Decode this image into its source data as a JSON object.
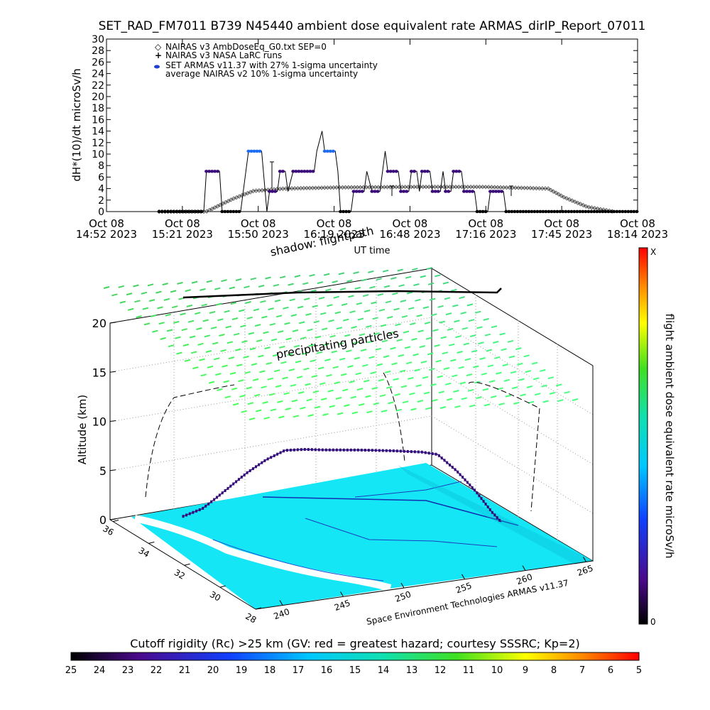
{
  "figure_title": "SET_RAD_FM7011  B739 N45440 ambient dose equivalent rate ARMAS_dirIP_Report_07011",
  "legend": [
    {
      "symbol": "diamond",
      "label": "NAIRAS v3 AmbDoseEq_G0.txt SEP=0"
    },
    {
      "symbol": "plus",
      "label": "NAIRAS v3 NASA LaRC runs"
    },
    {
      "symbol": "dot",
      "label": "SET ARMAS v11.37 with 27% 1-sigma uncertainty"
    },
    {
      "symbol": "none",
      "label": "average NAIRAS v2 10% 1-sigma uncertainty"
    }
  ],
  "colors": {
    "armas_low": "#3b0a7a",
    "armas_mid": "#1e6cf0",
    "armas_high": "#22cce8",
    "model": "#555555",
    "surface": "#15e6f5",
    "particles": "#55dd55"
  },
  "chart_data": [
    {
      "type": "line",
      "ylabel": "dH*(10)/dt microSv/h",
      "xlabel": "UT time",
      "ylim": [
        0,
        30
      ],
      "yticks": [
        "0",
        "2",
        "4",
        "6",
        "8",
        "10",
        "12",
        "14",
        "16",
        "18",
        "20",
        "22",
        "24",
        "26",
        "28",
        "30"
      ],
      "xlim": [
        "2023-10-08 14:52",
        "2023-10-08 18:14"
      ],
      "xticks": [
        {
          "l1": "Oct 08",
          "l2": "14:52 2023"
        },
        {
          "l1": "Oct 08",
          "l2": "15:21 2023"
        },
        {
          "l1": "Oct 08",
          "l2": "15:50 2023"
        },
        {
          "l1": "Oct 08",
          "l2": "16:19 2023"
        },
        {
          "l1": "Oct 08",
          "l2": "16:48 2023"
        },
        {
          "l1": "Oct 08",
          "l2": "17:16 2023"
        },
        {
          "l1": "Oct 08",
          "l2": "17:45 2023"
        },
        {
          "l1": "Oct 08",
          "l2": "18:14 2023"
        }
      ],
      "series": [
        {
          "name": "SET ARMAS v11.37 with 27% 1-sigma uncertainty",
          "points": [
            [
              "2023-10-08 15:12",
              0
            ],
            [
              "2023-10-08 15:29",
              0
            ],
            [
              "2023-10-08 15:30",
              7
            ],
            [
              "2023-10-08 15:35",
              7
            ],
            [
              "2023-10-08 15:36",
              0
            ],
            [
              "2023-10-08 15:43",
              0
            ],
            [
              "2023-10-08 15:44",
              3.5
            ],
            [
              "2023-10-08 15:46",
              10.5
            ],
            [
              "2023-10-08 15:51",
              10.5
            ],
            [
              "2023-10-08 15:53",
              0
            ],
            [
              "2023-10-08 15:54",
              3.5
            ],
            [
              "2023-10-08 15:57",
              3.5
            ],
            [
              "2023-10-08 15:58",
              7
            ],
            [
              "2023-10-08 16:00",
              7
            ],
            [
              "2023-10-08 16:01",
              3.5
            ],
            [
              "2023-10-08 16:03",
              7
            ],
            [
              "2023-10-08 16:11",
              7
            ],
            [
              "2023-10-08 16:12",
              10.5
            ],
            [
              "2023-10-08 16:14",
              14
            ],
            [
              "2023-10-08 16:15",
              10.5
            ],
            [
              "2023-10-08 16:19",
              10.5
            ],
            [
              "2023-10-08 16:20",
              7
            ],
            [
              "2023-10-08 16:21",
              0
            ],
            [
              "2023-10-08 16:25",
              0
            ],
            [
              "2023-10-08 16:26",
              3.5
            ],
            [
              "2023-10-08 16:30",
              3.5
            ],
            [
              "2023-10-08 16:31",
              7
            ],
            [
              "2023-10-08 16:33",
              3.5
            ],
            [
              "2023-10-08 16:36",
              3.5
            ],
            [
              "2023-10-08 16:37",
              7
            ],
            [
              "2023-10-08 16:38",
              10.5
            ],
            [
              "2023-10-08 16:39",
              7
            ],
            [
              "2023-10-08 16:43",
              7
            ],
            [
              "2023-10-08 16:44",
              3.5
            ],
            [
              "2023-10-08 16:47",
              3.5
            ],
            [
              "2023-10-08 16:48",
              7
            ],
            [
              "2023-10-08 16:50",
              7
            ],
            [
              "2023-10-08 16:51",
              3.5
            ],
            [
              "2023-10-08 16:52",
              7
            ],
            [
              "2023-10-08 16:55",
              7
            ],
            [
              "2023-10-08 16:56",
              3.5
            ],
            [
              "2023-10-08 16:59",
              3.5
            ],
            [
              "2023-10-08 17:00",
              7
            ],
            [
              "2023-10-08 17:01",
              3.5
            ],
            [
              "2023-10-08 17:03",
              3.5
            ],
            [
              "2023-10-08 17:04",
              7
            ],
            [
              "2023-10-08 17:07",
              7
            ],
            [
              "2023-10-08 17:08",
              3.5
            ],
            [
              "2023-10-08 17:12",
              3.5
            ],
            [
              "2023-10-08 17:13",
              0
            ],
            [
              "2023-10-08 17:17",
              0
            ],
            [
              "2023-10-08 17:18",
              3.5
            ],
            [
              "2023-10-08 17:23",
              3.5
            ],
            [
              "2023-10-08 17:24",
              0
            ],
            [
              "2023-10-08 18:14",
              0
            ]
          ]
        },
        {
          "name": "NAIRAS v3 AmbDoseEq_G0.txt SEP=0",
          "points": [
            [
              "2023-10-08 15:12",
              0
            ],
            [
              "2023-10-08 15:30",
              0
            ],
            [
              "2023-10-08 15:40",
              2.2
            ],
            [
              "2023-10-08 15:48",
              3.6
            ],
            [
              "2023-10-08 16:00",
              4.0
            ],
            [
              "2023-10-08 16:20",
              4.2
            ],
            [
              "2023-10-08 16:50",
              4.3
            ],
            [
              "2023-10-08 17:15",
              4.3
            ],
            [
              "2023-10-08 17:40",
              4.0
            ],
            [
              "2023-10-08 17:46",
              2.5
            ],
            [
              "2023-10-08 17:55",
              0.8
            ],
            [
              "2023-10-08 18:05",
              0
            ]
          ]
        }
      ]
    },
    {
      "type": "scatter",
      "title": "shadow: flightpath",
      "zlabel": "Altitude (km)",
      "zticks": [
        "0",
        "5",
        "10",
        "15",
        "20"
      ],
      "zlim": [
        0,
        20
      ],
      "x_ticks": [
        "240",
        "245",
        "250",
        "255",
        "260",
        "265"
      ],
      "y_ticks": [
        "28",
        "30",
        "32",
        "34",
        "36"
      ],
      "annotation": "precipitating particles",
      "credit": "Space Environment Technologies ARMAS v11.37",
      "flight_altitude_km": [
        [
          0,
          0.3
        ],
        [
          0.06,
          1.5
        ],
        [
          0.1,
          3
        ],
        [
          0.15,
          5
        ],
        [
          0.2,
          7
        ],
        [
          0.26,
          9
        ],
        [
          0.32,
          10.5
        ],
        [
          0.38,
          10.7
        ],
        [
          0.45,
          10.7
        ],
        [
          0.55,
          10.8
        ],
        [
          0.65,
          10.8
        ],
        [
          0.75,
          10.7
        ],
        [
          0.8,
          10.4
        ],
        [
          0.86,
          8
        ],
        [
          0.92,
          5
        ],
        [
          0.97,
          2
        ],
        [
          1,
          0.5
        ]
      ],
      "colorbar": {
        "label": "flight ambient dose equivalent rate microSv/h",
        "top": "X",
        "bottom": "0"
      }
    },
    {
      "type": "heatmap",
      "title": "Cutoff rigidity (Rc) >25 km (GV: red = greatest hazard; courtesy SSSRC; Kp=2)",
      "ticks": [
        "25",
        "24",
        "23",
        "22",
        "21",
        "20",
        "19",
        "18",
        "17",
        "16",
        "15",
        "14",
        "13",
        "12",
        "11",
        "10",
        "9",
        "8",
        "7",
        "6",
        "5"
      ]
    }
  ]
}
